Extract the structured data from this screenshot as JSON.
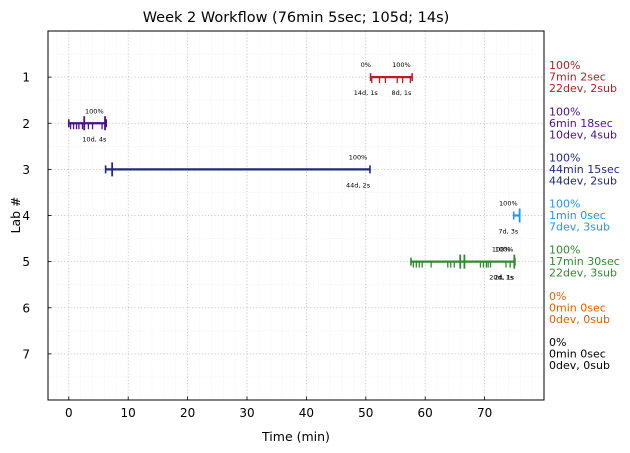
{
  "chart_data": {
    "type": "timeline",
    "title": "Week 2 Workflow (76min 5sec; 105d; 14s)",
    "xlabel": "Time (min)",
    "ylabel": "Lab #",
    "xlim": [
      -3.5,
      80
    ],
    "ylim": [
      8,
      0
    ],
    "xticks": [
      0,
      10,
      20,
      30,
      40,
      50,
      60,
      70
    ],
    "yticks": [
      1,
      2,
      3,
      4,
      5,
      6,
      7
    ],
    "grid": true,
    "labs": [
      {
        "lab": 1,
        "color": "#b22222",
        "summary": [
          "100%",
          "7min 2sec",
          "22dev, 2sub"
        ],
        "segments": [
          {
            "start": 50.8,
            "end": 57.8
          }
        ],
        "ticks": [
          51.0,
          52.3,
          53.3,
          55.3,
          56.2,
          57.5
        ],
        "big_ticks": [],
        "annotations": [
          {
            "x": 50.0,
            "above": "0%",
            "below": "14d, 1s"
          },
          {
            "x": 56.0,
            "above": "100%",
            "below": "8d, 1s"
          }
        ]
      },
      {
        "lab": 2,
        "color": "#4b0f8c",
        "summary": [
          "100%",
          "6min 18sec",
          "10dev, 4sub"
        ],
        "segments": [
          {
            "start": 0.0,
            "end": 6.3
          }
        ],
        "ticks": [
          0.3,
          0.8,
          1.3,
          1.7,
          2.3,
          3.3,
          4.0,
          5.6
        ],
        "big_ticks": [
          2.6,
          6.1
        ],
        "annotations": [
          {
            "x": 4.3,
            "above": "100%",
            "below": "10d, 4s"
          }
        ]
      },
      {
        "lab": 3,
        "color": "#1f2a7a",
        "summary": [
          "100%",
          "44min 15sec",
          "44dev, 2sub"
        ],
        "segments": [
          {
            "start": 6.2,
            "end": 50.7
          }
        ],
        "ticks": [],
        "big_ticks": [
          7.3
        ],
        "annotations": [
          {
            "x": 48.7,
            "above": "100%",
            "below": "44d, 2s"
          }
        ]
      },
      {
        "lab": 4,
        "color": "#2196f3",
        "summary": [
          "100%",
          "1min 0sec",
          "7dev, 3sub"
        ],
        "segments": [
          {
            "start": 74.9,
            "end": 75.9
          }
        ],
        "ticks": [],
        "big_ticks": [
          75.9
        ],
        "annotations": [
          {
            "x": 74.0,
            "above": "100%",
            "below": "7d, 3s"
          }
        ]
      },
      {
        "lab": 5,
        "color": "#2e8b2e",
        "summary": [
          "100%",
          "17min 30sec",
          "22dev, 3sub"
        ],
        "segments": [
          {
            "start": 57.6,
            "end": 75.1
          }
        ],
        "ticks": [
          58.0,
          58.5,
          59.0,
          59.5,
          61.0,
          63.8,
          64.3,
          64.9,
          69.3,
          69.8,
          70.3,
          70.6,
          71.0,
          73.6,
          74.3
        ],
        "big_ticks": [
          65.9,
          66.6,
          75.0
        ],
        "annotations": [
          {
            "x": 72.8,
            "above": "100%",
            "below": "20d, 1s"
          },
          {
            "x": 73.3,
            "above": "100%",
            "below": "2d, 1s"
          }
        ]
      },
      {
        "lab": 6,
        "color": "#e06000",
        "summary": [
          "0%",
          "0min 0sec",
          "0dev, 0sub"
        ],
        "segments": [],
        "ticks": [],
        "big_ticks": [],
        "annotations": []
      },
      {
        "lab": 7,
        "color": "#000000",
        "summary": [
          "0%",
          "0min 0sec",
          "0dev, 0sub"
        ],
        "segments": [],
        "ticks": [],
        "big_ticks": [],
        "annotations": []
      }
    ]
  }
}
